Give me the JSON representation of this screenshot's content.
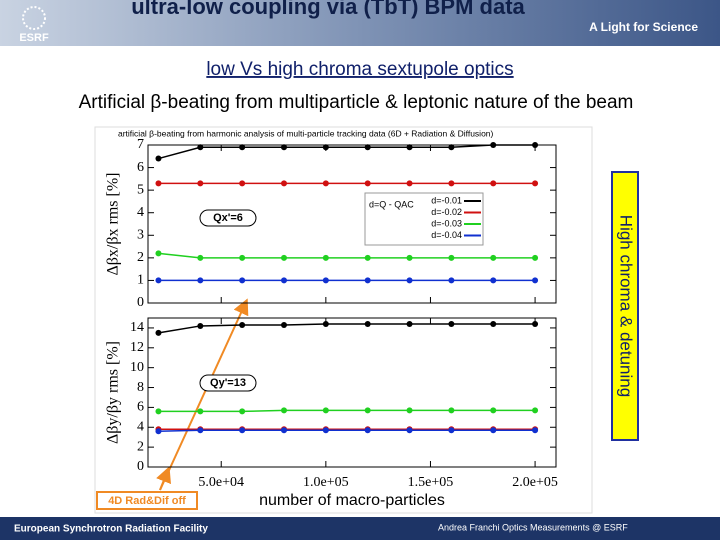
{
  "header": {
    "title": "ultra-low coupling via (TbT) BPM data",
    "brand": "ESRF",
    "tagline": "A Light for Science"
  },
  "slide": {
    "heading": "low Vs high chroma sextupole optics",
    "subheading": "Artificial β-beating from multiparticle & leptonic nature of the beam"
  },
  "figure": {
    "title": "artificial β-beating from harmonic analysis of multi-particle tracking data (6D + Radiation & Diffusion)",
    "side_label": "High chroma & detuning",
    "corner_label": "4D Rad&Dif off",
    "x_label": "number of macro-particles"
  },
  "chart_data": [
    {
      "type": "line",
      "y_label": "Δβx/βx rms [%]",
      "annotation": "Qx'=6",
      "legend_title": "d=Q - QAC",
      "x": [
        20000,
        40000,
        60000,
        80000,
        100000,
        120000,
        140000,
        160000,
        180000,
        200000
      ],
      "xlim": [
        15000,
        210000
      ],
      "ylim": [
        0,
        7
      ],
      "yticks": [
        0,
        1,
        2,
        3,
        4,
        5,
        6,
        7
      ],
      "series": [
        {
          "name": "d=-0.01",
          "color": "#000000",
          "values": [
            6.4,
            6.9,
            6.9,
            6.9,
            6.9,
            6.9,
            6.9,
            6.9,
            7.0,
            7.0
          ]
        },
        {
          "name": "d=-0.02",
          "color": "#d01010",
          "values": [
            5.3,
            5.3,
            5.3,
            5.3,
            5.3,
            5.3,
            5.3,
            5.3,
            5.3,
            5.3
          ]
        },
        {
          "name": "d=-0.03",
          "color": "#20d020",
          "values": [
            2.2,
            2.0,
            2.0,
            2.0,
            2.0,
            2.0,
            2.0,
            2.0,
            2.0,
            2.0
          ]
        },
        {
          "name": "d=-0.04",
          "color": "#1030d0",
          "values": [
            1.0,
            1.0,
            1.0,
            1.0,
            1.0,
            1.0,
            1.0,
            1.0,
            1.0,
            1.0
          ]
        }
      ]
    },
    {
      "type": "line",
      "y_label": "Δβy/βy rms [%]",
      "annotation": "Qy'=13",
      "x": [
        20000,
        40000,
        60000,
        80000,
        100000,
        120000,
        140000,
        160000,
        180000,
        200000
      ],
      "xlim": [
        15000,
        210000
      ],
      "ylim": [
        0,
        15
      ],
      "yticks": [
        0,
        2,
        4,
        6,
        8,
        10,
        12,
        14
      ],
      "xticks": [
        {
          "value": 50000,
          "label": "5.0e+04"
        },
        {
          "value": 100000,
          "label": "1.0e+05"
        },
        {
          "value": 150000,
          "label": "1.5e+05"
        },
        {
          "value": 200000,
          "label": "2.0e+05"
        }
      ],
      "series": [
        {
          "color": "#000000",
          "values": [
            13.5,
            14.2,
            14.3,
            14.3,
            14.4,
            14.4,
            14.4,
            14.4,
            14.4,
            14.4
          ]
        },
        {
          "color": "#d01010",
          "values": [
            3.8,
            3.8,
            3.8,
            3.8,
            3.8,
            3.8,
            3.8,
            3.8,
            3.8,
            3.8
          ]
        },
        {
          "color": "#20d020",
          "values": [
            5.6,
            5.6,
            5.6,
            5.7,
            5.7,
            5.7,
            5.7,
            5.7,
            5.7,
            5.7
          ]
        },
        {
          "color": "#1030d0",
          "values": [
            3.6,
            3.7,
            3.7,
            3.7,
            3.7,
            3.7,
            3.7,
            3.7,
            3.7,
            3.7
          ]
        }
      ]
    }
  ],
  "footer": {
    "left": "European Synchrotron Radiation Facility",
    "right": "Andrea Franchi Optics Measurements @ ESRF"
  }
}
